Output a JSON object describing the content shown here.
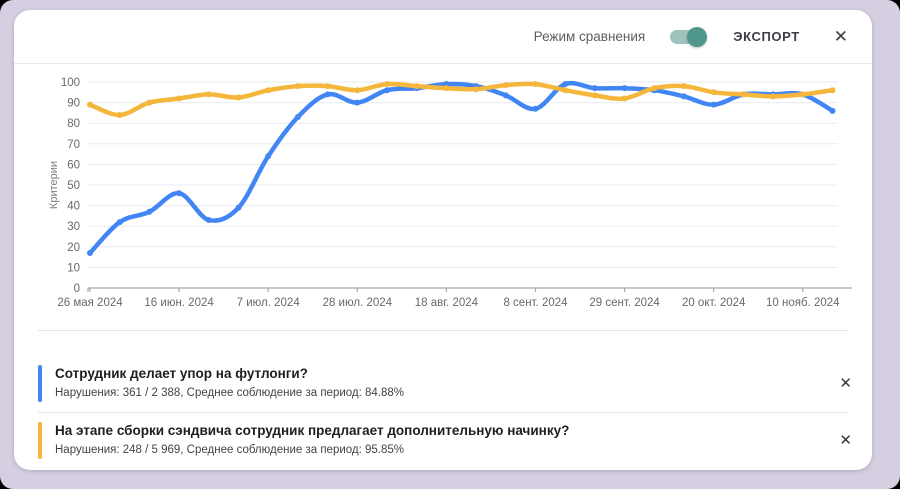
{
  "header": {
    "compare_label": "Режим сравнения",
    "toggle_state": "on",
    "export_label": "ЭКСПОРТ",
    "close_icon": "✕"
  },
  "colors": {
    "series_blue": "#4285F4",
    "series_orange": "#F4B63B",
    "toggle_knob": "#4F968C",
    "toggle_track": "#9EC3BC",
    "grid_line": "#e9ebf2",
    "axis_line": "#a6a9ae",
    "tick_text": "#66696e"
  },
  "chart_data": {
    "type": "line",
    "title": "",
    "xlabel": "",
    "ylabel": "Критерии",
    "ylim": [
      0,
      100
    ],
    "grid": true,
    "legend_position": "bottom-cards",
    "y_ticks": [
      0,
      10,
      20,
      30,
      40,
      50,
      60,
      70,
      80,
      90,
      100
    ],
    "x_tick_indices": [
      0,
      3,
      6,
      9,
      12,
      15,
      18,
      21,
      24
    ],
    "x_tick_labels": [
      "26 мая 2024",
      "16 июн. 2024",
      "7 июл. 2024",
      "28 июл. 2024",
      "18 авг. 2024",
      "8 сент. 2024",
      "29 сент. 2024",
      "20 окт. 2024",
      "10 нояб. 2024"
    ],
    "series": [
      {
        "name": "Сотрудник делает упор на футлонги?",
        "color": "#4285F4",
        "values": [
          17,
          32,
          37,
          46,
          33,
          39,
          64,
          83,
          94,
          90,
          96,
          97,
          99,
          98,
          93.5,
          87,
          99,
          97,
          97,
          96,
          93,
          89,
          94,
          94,
          94,
          86
        ]
      },
      {
        "name": "На этапе сборки сэндвича сотрудник предлагает дополнительную начинку?",
        "color": "#F4B63B",
        "values": [
          89,
          84,
          90,
          92,
          94,
          92.5,
          96,
          98,
          98,
          96,
          99,
          98,
          97,
          96.5,
          98.5,
          99,
          96,
          93.5,
          92,
          97,
          98,
          95,
          94,
          93,
          94,
          96
        ]
      }
    ]
  },
  "questions": [
    {
      "title": "Сотрудник делает упор на футлонги?",
      "stats": "Нарушения: 361 / 2 388, Среднее соблюдение за период: 84.88%",
      "color": "#4285F4",
      "close_icon": "✕"
    },
    {
      "title": "На этапе сборки сэндвича сотрудник предлагает дополнительную начинку?",
      "stats": "Нарушения: 248 / 5 969, Среднее соблюдение за период: 95.85%",
      "color": "#F4B63B",
      "close_icon": "✕"
    }
  ]
}
